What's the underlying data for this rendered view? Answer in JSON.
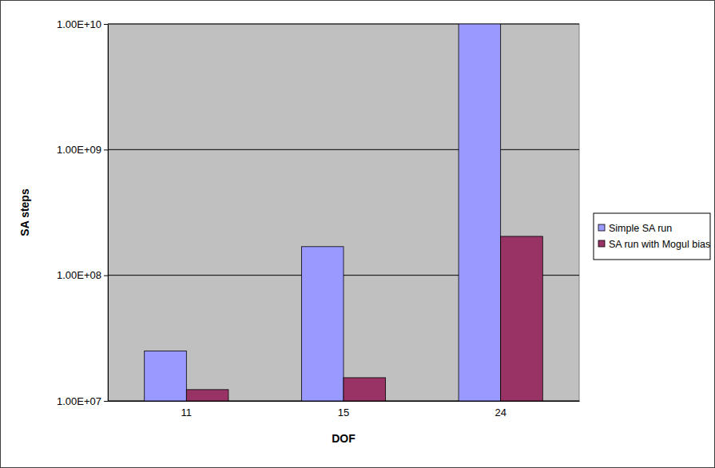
{
  "chart_data": {
    "type": "bar",
    "x_label": "DOF",
    "y_label": "SA steps",
    "categories": [
      "11",
      "15",
      "24"
    ],
    "series": [
      {
        "name": "Simple SA run",
        "color": "#9999ff",
        "values": [
          25000000,
          169000000,
          10000000000
        ]
      },
      {
        "name": "SA run with Mogul bias",
        "color": "#993366",
        "values": [
          12300000,
          15300000,
          204000000
        ]
      }
    ],
    "ylim": [
      10000000,
      10000000000
    ],
    "yticks": [
      {
        "value": 10000000,
        "label": "1.00E+07"
      },
      {
        "value": 100000000,
        "label": "1.00E+08"
      },
      {
        "value": 1000000000,
        "label": "1.00E+09"
      },
      {
        "value": 10000000000,
        "label": "1.00E+10"
      }
    ],
    "log": "y",
    "grid": true,
    "legend": "right"
  }
}
